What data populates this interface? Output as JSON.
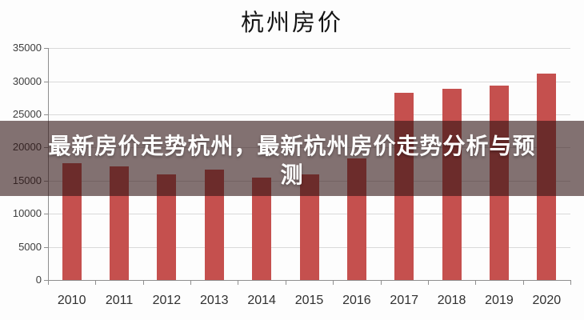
{
  "title": "杭州房价",
  "overlay": {
    "line1": "最新房价走势杭州，最新杭州房价走势分析与预",
    "line2": "测",
    "full_text": "最新房价走势杭州，最新杭州房价走势分析与预测"
  },
  "chart_data": {
    "type": "bar",
    "title": "杭州房价",
    "categories": [
      "2010",
      "2011",
      "2012",
      "2013",
      "2014",
      "2015",
      "2016",
      "2017",
      "2018",
      "2019",
      "2020"
    ],
    "values": [
      17600,
      17200,
      15900,
      16700,
      15400,
      15900,
      18400,
      28300,
      28900,
      29300,
      31200
    ],
    "xlabel": "",
    "ylabel": "",
    "ylim": [
      0,
      35000
    ],
    "yticks": [
      0,
      5000,
      10000,
      15000,
      20000,
      25000,
      30000,
      35000
    ],
    "grid": true,
    "legend": "none",
    "bar_color": "#c5504e",
    "background": "#fdfdfd"
  },
  "colors": {
    "bar": "#c5504e",
    "overlay_band": "rgba(48,20,20,0.6)",
    "gridline": "#d9d9d9",
    "axis": "#8f8f8f",
    "tick_label": "#3d3d3d",
    "title_text": "#141414",
    "overlay_text": "#ffffff"
  }
}
